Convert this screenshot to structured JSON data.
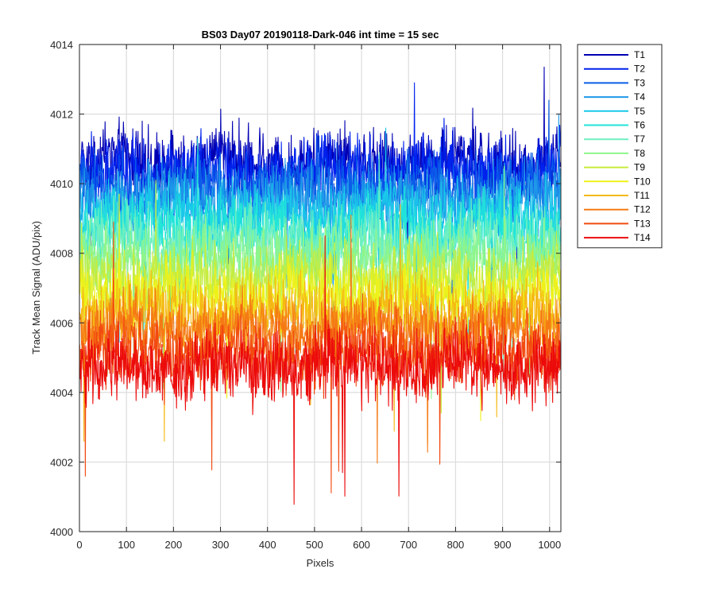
{
  "chart_data": {
    "type": "line",
    "title": "BS03 Day07 20190118-Dark-046 int time = 15 sec",
    "xlabel": "Pixels",
    "ylabel": "Track Mean Signal (ADU/pix)",
    "xlim": [
      0,
      1024
    ],
    "ylim": [
      4000,
      4014
    ],
    "xticks": [
      0,
      100,
      200,
      300,
      400,
      500,
      600,
      700,
      800,
      900,
      1000
    ],
    "yticks": [
      4000,
      4002,
      4004,
      4006,
      4008,
      4010,
      4012,
      4014
    ],
    "grid": true,
    "legend_position": "outside-top-right",
    "points_per_series": 1024,
    "noise_amplitude": 0.9,
    "series": [
      {
        "name": "T1",
        "color": "#0000b3",
        "mean": 4010.6,
        "spike_max": 4013.35
      },
      {
        "name": "T2",
        "color": "#0022ee",
        "mean": 4010.3,
        "spike_max": 4012.9
      },
      {
        "name": "T3",
        "color": "#0b5ee8",
        "mean": 4009.9,
        "spike_max": 4012.4
      },
      {
        "name": "T4",
        "color": "#1f98e8",
        "mean": 4009.5,
        "spike_max": 4012.0
      },
      {
        "name": "T5",
        "color": "#19c9ea",
        "mean": 4009.1,
        "spike_max": 4011.6
      },
      {
        "name": "T6",
        "color": "#22e5d8",
        "mean": 4008.7,
        "spike_max": 4011.3
      },
      {
        "name": "T7",
        "color": "#6ff0c0",
        "mean": 4008.3,
        "spike_max": 4010.9
      },
      {
        "name": "T8",
        "color": "#8ef58c",
        "mean": 4007.8,
        "spike_max": 4010.5
      },
      {
        "name": "T9",
        "color": "#c6ec3e",
        "mean": 4007.3,
        "spike_max": 4010.1
      },
      {
        "name": "T10",
        "color": "#eef21a",
        "mean": 4006.8,
        "spike_max": 4009.7
      },
      {
        "name": "T11",
        "color": "#f5b914",
        "mean": 4006.3,
        "spike_max": 4009.4
      },
      {
        "name": "T12",
        "color": "#f57a14",
        "mean": 4005.8,
        "spike_max": 4009.1
      },
      {
        "name": "T13",
        "color": "#f24a10",
        "mean": 4005.2,
        "spike_max": 4008.9
      },
      {
        "name": "T14",
        "color": "#ec0b0b",
        "mean": 4004.7,
        "spike_max": 4008.5
      }
    ]
  }
}
